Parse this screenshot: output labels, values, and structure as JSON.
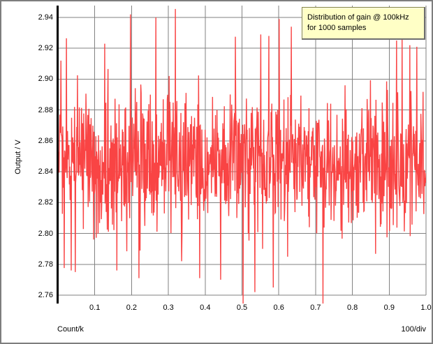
{
  "window": {
    "background": "#ffffff",
    "frame_border_color": "#7e7e7e"
  },
  "chart_data": {
    "type": "line",
    "title": "",
    "xlabel": "Count/k",
    "x_div_label": "100/div",
    "ylabel": "Output / V",
    "xlim": [
      0.0,
      1.0
    ],
    "ylim_labeled": [
      2.76,
      2.94
    ],
    "ylim_drawn": [
      2.7545,
      2.9477
    ],
    "grid": true,
    "grid_color": "#828282",
    "axis_color": "#000000",
    "plot_background": "#ffffff",
    "x_ticks": {
      "values": [
        0.1,
        0.2,
        0.3,
        0.4,
        0.5,
        0.6,
        0.7,
        0.8,
        0.9,
        1.0
      ],
      "labels": [
        "0.1",
        "0.2",
        "0.3",
        "0.4",
        "0.5",
        "0.6",
        "0.7",
        "0.8",
        "0.9",
        "1.0"
      ]
    },
    "y_ticks": {
      "values": [
        2.76,
        2.78,
        2.8,
        2.82,
        2.84,
        2.86,
        2.88,
        2.9,
        2.92,
        2.94
      ],
      "labels": [
        "2.76",
        "2.78",
        "2.80",
        "2.82",
        "2.84",
        "2.86",
        "2.88",
        "2.90",
        "2.92",
        "2.94"
      ]
    },
    "series": [
      {
        "name": "gain @ 100kHz",
        "color": "#f94444",
        "stroke_width": 1.4,
        "n": 1000,
        "x_start": 0.001,
        "x_step": 0.001,
        "mean": 2.845,
        "sigma": 0.022,
        "seed": 20240613,
        "clip": [
          2.7545,
          2.9477
        ],
        "notable_points": [
          {
            "x": 0.008,
            "v": 2.912
          },
          {
            "x": 0.017,
            "v": 2.7776
          },
          {
            "x": 0.023,
            "v": 2.9265
          },
          {
            "x": 0.036,
            "v": 2.776
          },
          {
            "x": 0.047,
            "v": 2.775
          },
          {
            "x": 0.127,
            "v": 2.923
          },
          {
            "x": 0.16,
            "v": 2.776
          },
          {
            "x": 0.197,
            "v": 2.942
          },
          {
            "x": 0.22,
            "v": 2.771
          },
          {
            "x": 0.266,
            "v": 2.94
          },
          {
            "x": 0.319,
            "v": 2.9455
          },
          {
            "x": 0.336,
            "v": 2.782
          },
          {
            "x": 0.385,
            "v": 2.771
          },
          {
            "x": 0.442,
            "v": 2.77
          },
          {
            "x": 0.482,
            "v": 2.9275
          },
          {
            "x": 0.503,
            "v": 2.7545
          },
          {
            "x": 0.535,
            "v": 2.762
          },
          {
            "x": 0.551,
            "v": 2.929
          },
          {
            "x": 0.573,
            "v": 2.928
          },
          {
            "x": 0.585,
            "v": 2.765
          },
          {
            "x": 0.601,
            "v": 2.939
          },
          {
            "x": 0.634,
            "v": 2.934
          },
          {
            "x": 0.72,
            "v": 2.7545
          },
          {
            "x": 0.92,
            "v": 2.925
          },
          {
            "x": 0.935,
            "v": 2.926
          },
          {
            "x": 0.956,
            "v": 2.922
          },
          {
            "x": 0.975,
            "v": 2.921
          }
        ]
      }
    ],
    "legend": {
      "lines": [
        "Distribution of gain @ 100kHz",
        "for 1000 samples"
      ],
      "background": "#ffffc6",
      "border_color": "#86863f",
      "shadow_color": "#6e6e6e",
      "text_color": "#000000"
    }
  }
}
